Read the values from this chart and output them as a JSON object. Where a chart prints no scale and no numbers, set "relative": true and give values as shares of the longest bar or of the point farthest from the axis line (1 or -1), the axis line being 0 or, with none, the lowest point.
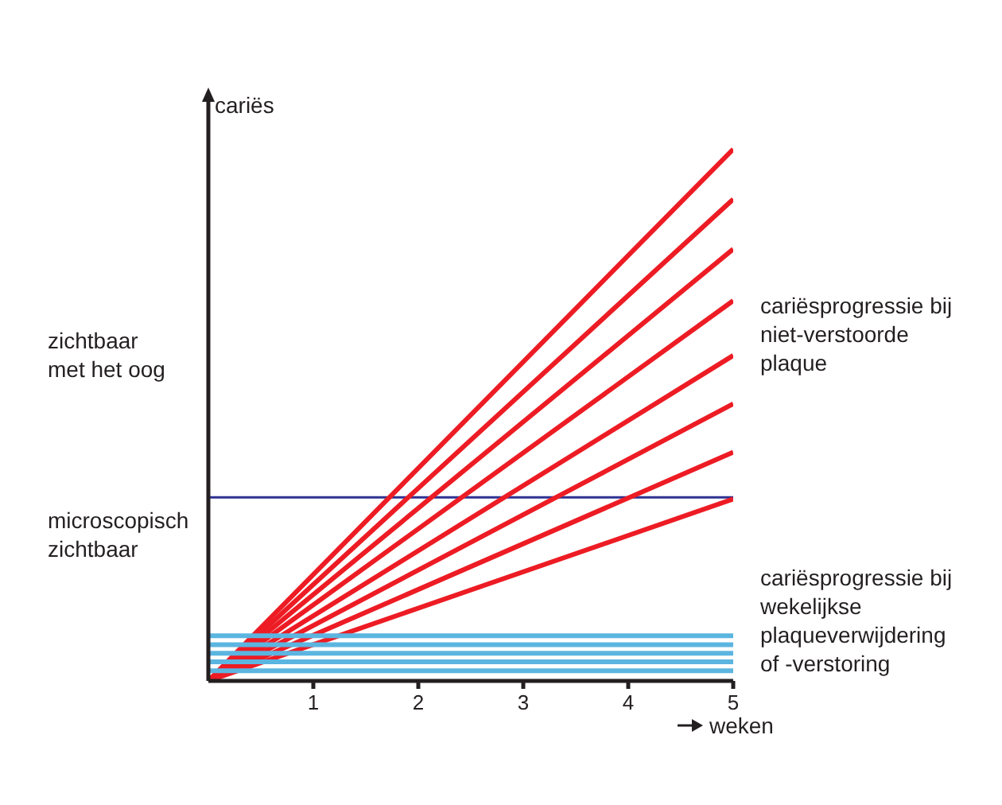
{
  "chart_data": {
    "type": "line",
    "relative": true,
    "ylabel": "cariës",
    "xlabel": "weken",
    "x": [
      0,
      5
    ],
    "xlim": [
      0,
      5
    ],
    "xticks": [
      1,
      2,
      3,
      4,
      5
    ],
    "grid": false,
    "legend": false,
    "marker": "none",
    "line_style": "solid",
    "annotations": [
      "zichtbaar met het oog",
      "microscopisch zichtbaar",
      "cariësprogressie bij niet-verstoorde plaque",
      "cariësprogressie bij wekelijkse plaqueverwijdering of -verstoring"
    ],
    "ref_lines": [
      {
        "axis": "y",
        "value": 0.345,
        "color": "#2e3192"
      }
    ],
    "series": [
      {
        "color": "#ed1c24",
        "values": [
          0,
          1
        ]
      },
      {
        "color": "#ed1c24",
        "values": [
          0,
          0.906
        ]
      },
      {
        "color": "#ed1c24",
        "values": [
          0,
          0.812
        ]
      },
      {
        "color": "#ed1c24",
        "values": [
          0,
          0.715
        ]
      },
      {
        "color": "#ed1c24",
        "values": [
          0,
          0.612
        ]
      },
      {
        "color": "#ed1c24",
        "values": [
          0,
          0.521
        ]
      },
      {
        "color": "#ed1c24",
        "values": [
          0,
          0.43
        ]
      },
      {
        "color": "#ed1c24",
        "values": [
          0,
          0.342
        ]
      },
      {
        "color": "#5bb5e0",
        "values": [
          0.085,
          0.085
        ]
      },
      {
        "color": "#5bb5e0",
        "values": [
          0.068,
          0.068
        ]
      },
      {
        "color": "#5bb5e0",
        "values": [
          0.052,
          0.052
        ]
      },
      {
        "color": "#5bb5e0",
        "values": [
          0.036,
          0.036
        ]
      },
      {
        "color": "#5bb5e0",
        "values": [
          0.019,
          0.019
        ]
      }
    ]
  }
}
